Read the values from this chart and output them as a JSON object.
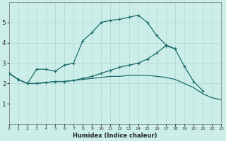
{
  "xlabel": "Humidex (Indice chaleur)",
  "background_color": "#cceee8",
  "grid_color": "#b8ddd8",
  "line_color": "#1a6b6b",
  "xlim": [
    0,
    23
  ],
  "ylim": [
    0,
    6
  ],
  "yticks": [
    1,
    2,
    3,
    4,
    5
  ],
  "xticks": [
    0,
    1,
    2,
    3,
    4,
    5,
    6,
    7,
    8,
    9,
    10,
    11,
    12,
    13,
    14,
    15,
    16,
    17,
    18,
    19,
    20,
    21,
    22,
    23
  ],
  "line1_x": [
    0,
    1,
    2,
    3,
    4,
    5,
    6,
    7,
    8,
    9,
    10,
    11,
    12,
    13,
    14,
    15,
    16,
    17,
    18
  ],
  "line1_y": [
    2.5,
    2.2,
    2.0,
    2.7,
    2.7,
    2.6,
    2.9,
    3.0,
    4.1,
    4.5,
    5.0,
    5.1,
    5.15,
    5.25,
    5.35,
    5.0,
    4.35,
    3.9,
    3.7
  ],
  "line2_x": [
    0,
    1,
    2,
    3,
    4,
    5,
    6,
    7,
    8,
    9,
    10,
    11,
    12,
    13,
    14,
    15,
    16,
    17,
    18,
    19,
    20,
    21,
    22,
    23
  ],
  "line2_y": [
    2.5,
    2.2,
    2.0,
    2.0,
    2.05,
    2.1,
    2.1,
    2.15,
    2.2,
    2.25,
    2.3,
    2.35,
    2.35,
    2.4,
    2.4,
    2.4,
    2.35,
    2.3,
    2.2,
    2.0,
    1.8,
    1.5,
    1.3,
    1.2
  ],
  "line3_x": [
    0,
    1,
    2,
    3,
    4,
    5,
    6,
    7,
    8,
    9,
    10,
    11,
    12,
    13,
    14,
    15,
    16,
    17,
    18,
    19,
    20,
    21
  ],
  "line3_y": [
    2.5,
    2.2,
    2.0,
    2.0,
    2.05,
    2.1,
    2.1,
    2.15,
    2.25,
    2.35,
    2.5,
    2.65,
    2.8,
    2.9,
    3.0,
    3.2,
    3.5,
    3.85,
    3.7,
    2.85,
    2.1,
    1.65
  ]
}
